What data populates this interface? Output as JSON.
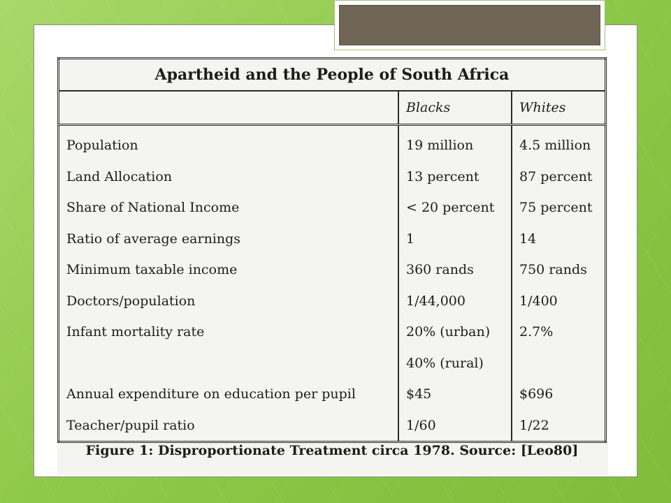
{
  "table": {
    "title": "Apartheid and the People of South Africa",
    "columns": [
      "",
      "Blacks",
      "Whites"
    ],
    "rows": [
      {
        "label": "Population",
        "blacks": "19 million",
        "whites": "4.5 million"
      },
      {
        "label": "Land Allocation",
        "blacks": "13 percent",
        "whites": "87 percent"
      },
      {
        "label": "Share of National Income",
        "blacks": "< 20 percent",
        "whites": "75 percent"
      },
      {
        "label": "Ratio of average earnings",
        "blacks": "1",
        "whites": "14"
      },
      {
        "label": "Minimum taxable income",
        "blacks": "360 rands",
        "whites": "750 rands"
      },
      {
        "label": "Doctors/population",
        "blacks": "1/44,000",
        "whites": "1/400"
      },
      {
        "label": "Infant mortality rate",
        "blacks": "20% (urban)",
        "whites": "2.7%"
      },
      {
        "label": "",
        "blacks": "40% (rural)",
        "whites": ""
      },
      {
        "label": "Annual expenditure on education per pupil",
        "blacks": "$45",
        "whites": "$696"
      },
      {
        "label": "Teacher/pupil ratio",
        "blacks": "1/60",
        "whites": "1/22"
      }
    ]
  },
  "caption": "Figure 1: Disproportionate Treatment circa 1978. Source: [Leo80]"
}
